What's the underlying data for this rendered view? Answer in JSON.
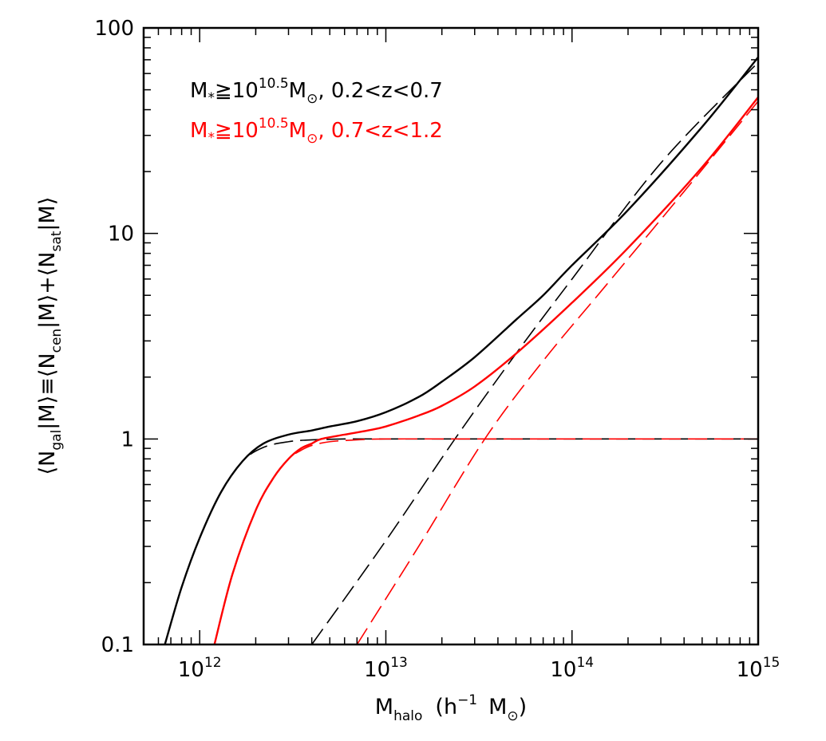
{
  "chart_data": {
    "type": "line",
    "title": "",
    "x_scale": "log",
    "y_scale": "log",
    "xlim": [
      500000000000,
      1000000000000000
    ],
    "ylim": [
      0.1,
      100
    ],
    "xlabel": {
      "main": "M",
      "sub": "halo",
      "rest": "(h",
      "exp": "−1",
      "tail": "M",
      "sym": "⊙",
      "close": ")"
    },
    "ylabel": "⟨N_gal|M⟩≡⟨N_cen|M⟩+⟨N_sat|M⟩",
    "ylabel_parts": [
      "⟨N",
      "gal",
      "|M⟩≡⟨N",
      "cen",
      "|M⟩+⟨N",
      "sat",
      "|M⟩"
    ],
    "x_ticks": [
      {
        "value": 1000000000000.0,
        "base": "10",
        "exp": "12"
      },
      {
        "value": 10000000000000.0,
        "base": "10",
        "exp": "13"
      },
      {
        "value": 100000000000000.0,
        "base": "10",
        "exp": "14"
      },
      {
        "value": 1000000000000000.0,
        "base": "10",
        "exp": "15"
      }
    ],
    "y_ticks": [
      {
        "value": 0.1,
        "label": "0.1"
      },
      {
        "value": 1,
        "label": "1"
      },
      {
        "value": 10,
        "label": "10"
      },
      {
        "value": 100,
        "label": "100"
      }
    ],
    "legend": [
      {
        "color": "#000000",
        "parts": [
          "M",
          "*",
          "≧10",
          "10.5",
          "M",
          "⊙",
          ",  0.2<z<0.7"
        ]
      },
      {
        "color": "#ff0000",
        "parts": [
          "M",
          "*",
          "≧10",
          "10.5",
          "M",
          "⊙",
          ",  0.7<z<1.2"
        ]
      }
    ],
    "series": [
      {
        "name": "total 0.2<z<0.7",
        "color": "#000000",
        "dash": "solid",
        "x": [
          650000000000.0,
          800000000000.0,
          1000000000000.0,
          1300000000000.0,
          1700000000000.0,
          2200000000000.0,
          3000000000000.0,
          4000000000000.0,
          5000000000000.0,
          7000000000000.0,
          10000000000000.0,
          15000000000000.0,
          20000000000000.0,
          30000000000000.0,
          50000000000000.0,
          70000000000000.0,
          100000000000000.0,
          200000000000000.0,
          500000000000000.0,
          1000000000000000.0
        ],
        "y": [
          0.1,
          0.19,
          0.33,
          0.55,
          0.78,
          0.95,
          1.05,
          1.1,
          1.15,
          1.22,
          1.35,
          1.6,
          1.9,
          2.5,
          3.8,
          5.0,
          7.0,
          13.0,
          33.0,
          72.0
        ]
      },
      {
        "name": "central 0.2<z<0.7",
        "color": "#000000",
        "dash": "dashed",
        "x": [
          650000000000.0,
          800000000000.0,
          1000000000000.0,
          1300000000000.0,
          1700000000000.0,
          2200000000000.0,
          3000000000000.0,
          4000000000000.0,
          6000000000000.0,
          10000000000000.0,
          30000000000000.0,
          100000000000000.0,
          1000000000000000.0
        ],
        "y": [
          0.1,
          0.19,
          0.33,
          0.55,
          0.78,
          0.91,
          0.97,
          0.99,
          1.0,
          1.0,
          1.0,
          1.0,
          1.0
        ]
      },
      {
        "name": "satellite 0.2<z<0.7",
        "color": "#000000",
        "dash": "dashed",
        "x": [
          4000000000000.0,
          10000000000000.0,
          23500000000000.0,
          50000000000000.0,
          100000000000000.0,
          300000000000000.0,
          1000000000000000.0
        ],
        "y": [
          0.1,
          0.32,
          1.0,
          2.6,
          6.0,
          22.0,
          68.0
        ]
      },
      {
        "name": "total 0.7<z<1.2",
        "color": "#ff0000",
        "dash": "solid",
        "x": [
          1200000000000.0,
          1500000000000.0,
          2000000000000.0,
          2500000000000.0,
          3000000000000.0,
          3500000000000.0,
          4000000000000.0,
          4500000000000.0,
          6000000000000.0,
          8000000000000.0,
          10000000000000.0,
          15000000000000.0,
          20000000000000.0,
          30000000000000.0,
          50000000000000.0,
          100000000000000.0,
          200000000000000.0,
          500000000000000.0,
          1000000000000000.0
        ],
        "y": [
          0.1,
          0.22,
          0.45,
          0.65,
          0.8,
          0.9,
          0.95,
          1.0,
          1.05,
          1.1,
          1.15,
          1.3,
          1.45,
          1.8,
          2.6,
          4.6,
          8.5,
          21.0,
          46.0
        ]
      },
      {
        "name": "central 0.7<z<1.2",
        "color": "#ff0000",
        "dash": "dashed",
        "x": [
          1200000000000.0,
          1500000000000.0,
          2000000000000.0,
          2500000000000.0,
          3000000000000.0,
          3500000000000.0,
          4000000000000.0,
          5000000000000.0,
          7000000000000.0,
          10000000000000.0,
          30000000000000.0,
          100000000000000.0,
          1000000000000000.0
        ],
        "y": [
          0.1,
          0.22,
          0.45,
          0.65,
          0.8,
          0.88,
          0.93,
          0.97,
          0.99,
          1.0,
          1.0,
          1.0,
          1.0
        ]
      },
      {
        "name": "satellite 0.7<z<1.2",
        "color": "#ff0000",
        "dash": "dashed",
        "x": [
          7000000000000.0,
          15000000000000.0,
          34000000000000.0,
          70000000000000.0,
          150000000000000.0,
          400000000000000.0,
          1000000000000000.0
        ],
        "y": [
          0.1,
          0.3,
          1.0,
          2.4,
          5.5,
          16.0,
          44.0
        ]
      }
    ]
  }
}
